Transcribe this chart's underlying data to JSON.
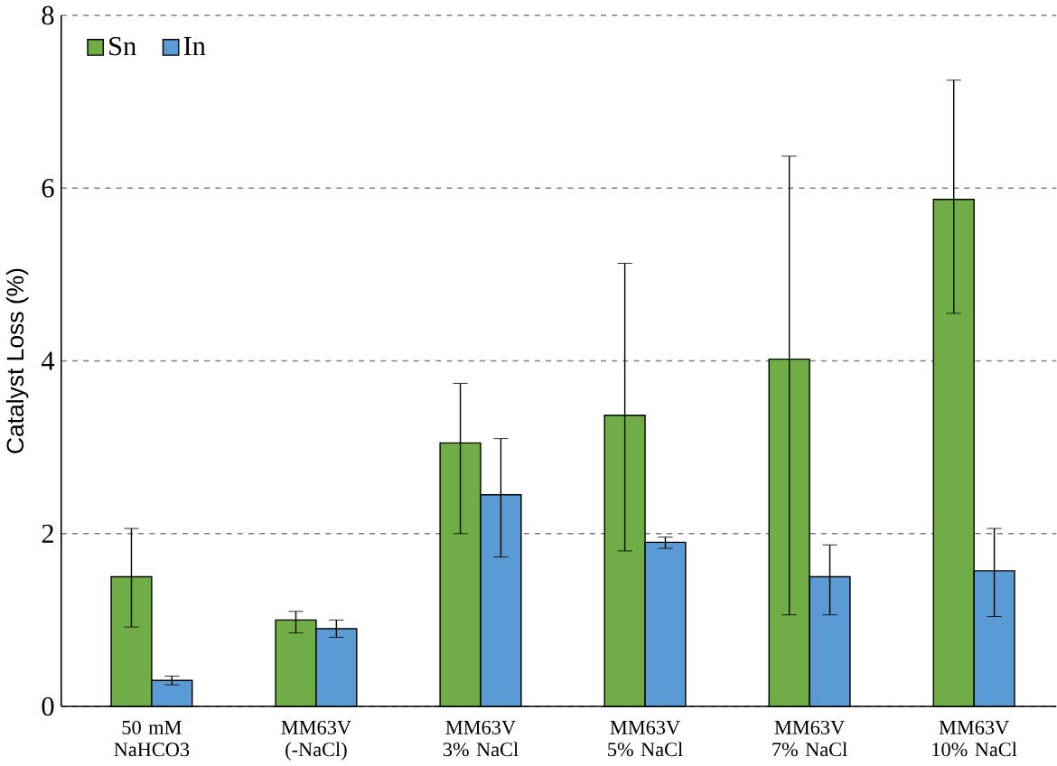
{
  "chart_data": {
    "type": "bar",
    "ylabel": "Catalyst Loss (%)",
    "categories": [
      "50 mM NaHCO3",
      "MM63V (-NaCl)",
      "MM63V 3% NaCl",
      "MM63V 5% NaCl",
      "MM63V 7% NaCl",
      "MM63V 10% NaCl"
    ],
    "series": [
      {
        "name": "Sn",
        "color": "#70ad47",
        "values": [
          1.5,
          1.0,
          3.05,
          3.37,
          4.02,
          5.87
        ],
        "errors": [
          [
            0.92,
            2.06
          ],
          [
            0.85,
            1.1
          ],
          [
            2.0,
            3.74
          ],
          [
            1.8,
            5.13
          ],
          [
            1.06,
            6.37
          ],
          [
            4.55,
            7.25
          ]
        ]
      },
      {
        "name": "In",
        "color": "#5b9bd5",
        "values": [
          0.3,
          0.9,
          2.45,
          1.9,
          1.5,
          1.57
        ],
        "errors": [
          [
            0.25,
            0.35
          ],
          [
            0.8,
            1.0
          ],
          [
            1.73,
            3.1
          ],
          [
            1.83,
            1.96
          ],
          [
            1.06,
            1.87
          ],
          [
            1.04,
            2.06
          ]
        ]
      }
    ],
    "ylim": [
      0,
      8
    ],
    "yticks": [
      0,
      2,
      4,
      6,
      8
    ],
    "grid": "y",
    "legend": "top left"
  }
}
